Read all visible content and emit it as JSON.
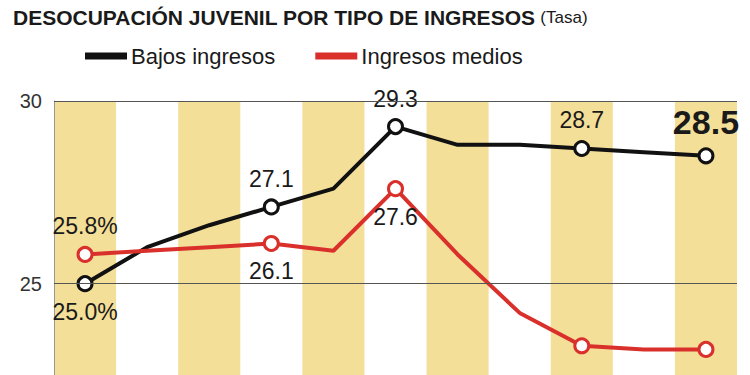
{
  "chart_data": {
    "type": "line",
    "title": "DESOCUPACIÓN JUVENIL POR TIPO DE INGRESOS",
    "subtitle": "(Tasa)",
    "categories": [
      null,
      null,
      null,
      null,
      null,
      null,
      null,
      null,
      null,
      null,
      null
    ],
    "series": [
      {
        "name": "Bajos ingresos",
        "color": "#111111",
        "values": [
          25.0,
          26.0,
          26.6,
          27.1,
          27.6,
          29.3,
          28.8,
          28.8,
          28.7,
          28.6,
          28.5
        ],
        "value_labels": [
          "25.0%",
          null,
          null,
          "27.1",
          null,
          "29.3",
          null,
          null,
          "28.7",
          null,
          "28.5"
        ]
      },
      {
        "name": "Ingresos medios",
        "color": "#d9302c",
        "values": [
          25.8,
          25.9,
          26.0,
          26.1,
          25.9,
          27.6,
          25.8,
          24.2,
          23.3,
          23.2,
          23.2
        ],
        "value_labels": [
          "25.8%",
          null,
          null,
          "26.1",
          null,
          "27.6",
          null,
          null,
          null,
          null,
          null
        ]
      }
    ],
    "ylim": [
      22.5,
      30
    ],
    "yticks": [
      25,
      30
    ],
    "grid": true,
    "legend": "top-left",
    "data_labels": true,
    "tick_labels": "y",
    "marker": "circle",
    "line_style": "solid"
  }
}
